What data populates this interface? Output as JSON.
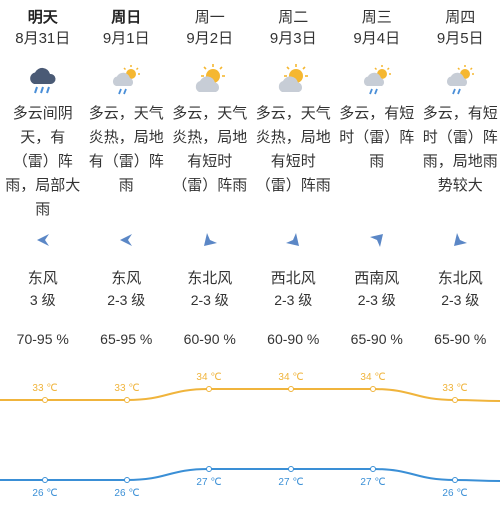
{
  "colors": {
    "high_line": "#f0b43c",
    "low_line": "#3a8fd6",
    "arrow": "#5b87c6",
    "text": "#333333"
  },
  "days": [
    {
      "day": "明天",
      "date": "8月31日",
      "bold": true,
      "icon": "cloud-rain-icon",
      "desc": "多云间阴天，有（雷）阵雨，局部大雨",
      "wind_dir": "东风",
      "wind_level": "3 级",
      "humidity": "70-95 %",
      "arrow": "west-arrow-icon"
    },
    {
      "day": "周日",
      "date": "9月1日",
      "bold": true,
      "icon": "sun-cloud-rain-icon",
      "desc": "多云，天气炎热，局地有（雷）阵雨",
      "wind_dir": "东风",
      "wind_level": "2-3 级",
      "humidity": "65-95 %",
      "arrow": "west-arrow-icon"
    },
    {
      "day": "周一",
      "date": "9月2日",
      "bold": false,
      "icon": "sun-cloud-icon",
      "desc": "多云，天气炎热，局地有短时（雷）阵雨",
      "wind_dir": "东北风",
      "wind_level": "2-3 级",
      "humidity": "60-90 %",
      "arrow": "southwest-arrow-icon"
    },
    {
      "day": "周二",
      "date": "9月3日",
      "bold": false,
      "icon": "sun-cloud-icon",
      "desc": "多云，天气炎热，局地有短时（雷）阵雨",
      "wind_dir": "西北风",
      "wind_level": "2-3 级",
      "humidity": "60-90 %",
      "arrow": "southeast-arrow-icon"
    },
    {
      "day": "周三",
      "date": "9月4日",
      "bold": false,
      "icon": "sun-cloud-rain-icon",
      "desc": "多云，有短时（雷）阵雨",
      "wind_dir": "西南风",
      "wind_level": "2-3 级",
      "humidity": "65-90 %",
      "arrow": "northeast-arrow-icon"
    },
    {
      "day": "周四",
      "date": "9月5日",
      "bold": false,
      "icon": "sun-cloud-rain-icon",
      "desc": "多云，有短时（雷）阵雨，局地雨势较大",
      "wind_dir": "东北风",
      "wind_level": "2-3 级",
      "humidity": "65-90 %",
      "arrow": "southwest-arrow-icon"
    }
  ],
  "temperatures": {
    "unit": "℃",
    "highs": [
      33,
      33,
      34,
      34,
      34,
      33
    ],
    "lows": [
      26,
      26,
      27,
      27,
      27,
      26
    ],
    "high_labels": [
      "33 ℃",
      "33 ℃",
      "34 ℃",
      "34 ℃",
      "34 ℃",
      "33 ℃"
    ],
    "low_labels": [
      "26 ℃",
      "26 ℃",
      "27 ℃",
      "27 ℃",
      "27 ℃",
      "26 ℃"
    ]
  }
}
